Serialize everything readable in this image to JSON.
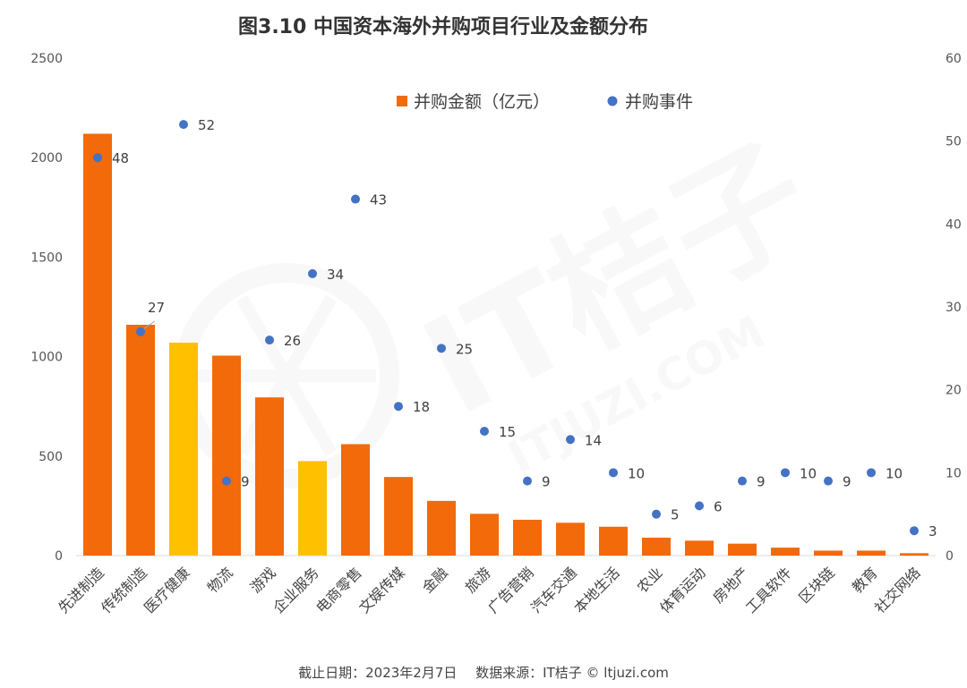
{
  "title": "图3.10 中国资本海外并购项目行业及金额分布",
  "footer": {
    "cutoff": "截止日期：2023年2月7日",
    "source": "数据来源：IT桔子 © ltjuzi.com"
  },
  "watermark": {
    "brand": "IT桔子",
    "domain": "ITJUZI.COM"
  },
  "colors": {
    "bar": "#F26A0A",
    "bar_highlight": "#FFC000",
    "dot": "#4472C4",
    "axis_text": "#555555"
  },
  "chart_data": {
    "type": "bar",
    "title": "图3.10 中国资本海外并购项目行业及金额分布",
    "categories": [
      "先进制造",
      "传统制造",
      "医疗健康",
      "物流",
      "游戏",
      "企业服务",
      "电商零售",
      "文娱传媒",
      "金融",
      "旅游",
      "广告营销",
      "汽车交通",
      "本地生活",
      "农业",
      "体育运动",
      "房地产",
      "工具软件",
      "区块链",
      "教育",
      "社交网络"
    ],
    "series": [
      {
        "name": "并购金额（亿元）",
        "type": "bar",
        "axis": "left",
        "values": [
          2120,
          1160,
          1070,
          1005,
          795,
          475,
          560,
          395,
          275,
          210,
          180,
          165,
          145,
          90,
          75,
          60,
          40,
          25,
          25,
          12
        ],
        "highlight": [
          "医疗健康",
          "企业服务"
        ]
      },
      {
        "name": "并购事件",
        "type": "scatter",
        "axis": "right",
        "values": [
          48,
          27,
          52,
          9,
          26,
          34,
          43,
          18,
          25,
          15,
          9,
          14,
          10,
          5,
          6,
          9,
          10,
          9,
          10,
          3
        ],
        "labels": [
          "48",
          "27",
          "52",
          "9",
          "26",
          "34",
          "43",
          "18",
          "25",
          "15",
          "9",
          "14",
          "10",
          "5",
          "6",
          "9",
          "10",
          "9",
          "10",
          "3"
        ]
      }
    ],
    "y_left": {
      "min": 0,
      "max": 2500,
      "ticks": [
        "0",
        "500",
        "1000",
        "1500",
        "2000",
        "2500"
      ]
    },
    "y_right": {
      "min": 0,
      "max": 60,
      "ticks": [
        "0",
        "10",
        "20",
        "30",
        "40",
        "50",
        "60"
      ]
    },
    "legend": {
      "position": "top-center",
      "items": [
        "并购金额（亿元）",
        "并购事件"
      ]
    },
    "grid": false
  }
}
